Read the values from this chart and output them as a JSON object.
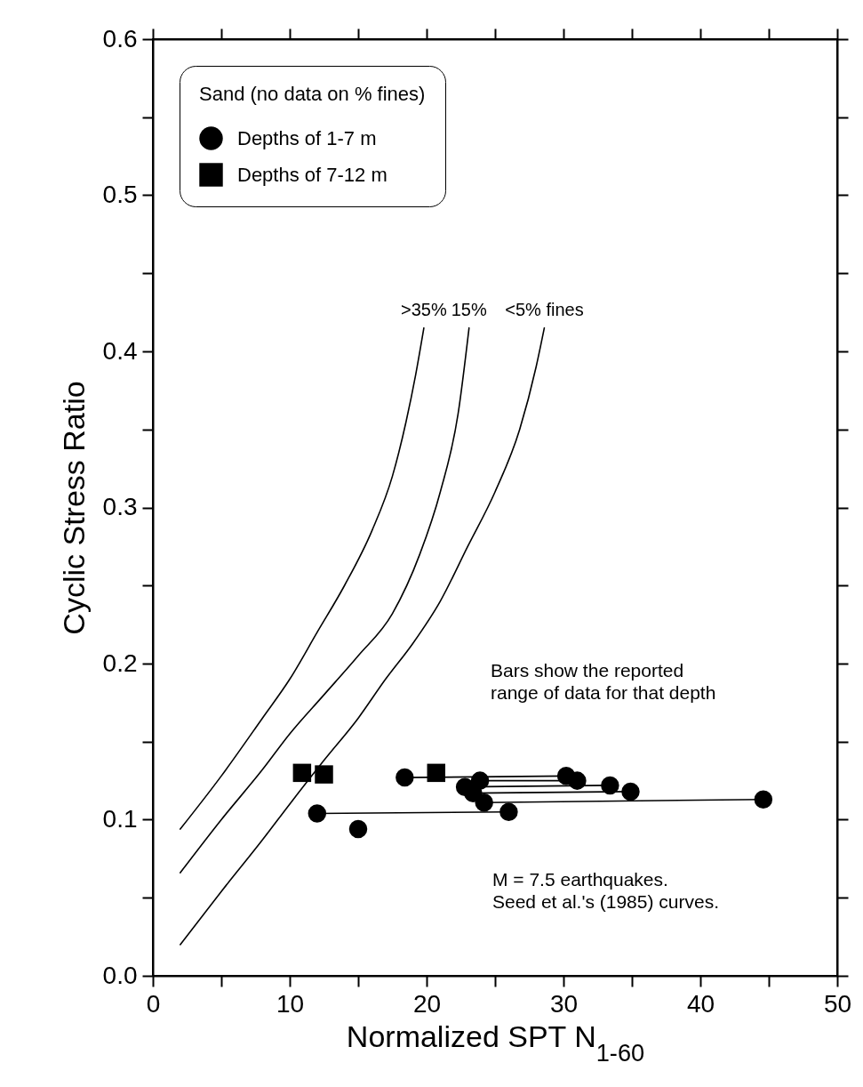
{
  "chart_data": {
    "type": "scatter",
    "xlabel": "Normalized SPT N$_{1-60}$",
    "ylabel": "Cyclic Stress Ratio",
    "legend_title": "Sand (no data on % fines)",
    "legend": "top left",
    "grid": false,
    "xlim": [
      0,
      50
    ],
    "ylim": [
      0,
      0.6
    ],
    "xticks": [
      0,
      {
        "value": 5,
        "label": null
      },
      10,
      {
        "value": 15,
        "label": null
      },
      20,
      {
        "value": 25,
        "label": null
      },
      30,
      {
        "value": 35,
        "label": null
      },
      40,
      {
        "value": 45,
        "label": null
      },
      50
    ],
    "yticks": [
      {
        "value": 0,
        "label": "0.0"
      },
      {
        "value": 0.05,
        "label": null
      },
      0.1,
      {
        "value": 0.15,
        "label": null
      },
      0.2,
      {
        "value": 0.25,
        "label": null
      },
      0.3,
      {
        "value": 0.35,
        "label": null
      },
      0.4,
      {
        "value": 0.45,
        "label": null
      },
      0.5,
      {
        "value": 0.55,
        "label": null
      },
      0.6
    ],
    "series": [
      {
        "type": "line",
        "marker": "none",
        "color": "#000000",
        "x": [
          18.4,
          30.2
        ],
        "values": [
          0.127,
          0.128
        ]
      },
      {
        "type": "line",
        "marker": "none",
        "color": "#000000",
        "x": [
          23.9,
          31.0
        ],
        "values": [
          0.125,
          0.125
        ]
      },
      {
        "type": "line",
        "marker": "none",
        "color": "#000000",
        "x": [
          22.8,
          33.4
        ],
        "values": [
          0.121,
          0.122
        ]
      },
      {
        "type": "line",
        "marker": "none",
        "color": "#000000",
        "x": [
          23.4,
          34.9
        ],
        "values": [
          0.117,
          0.118
        ]
      },
      {
        "type": "line",
        "marker": "none",
        "color": "#000000",
        "x": [
          24.2,
          44.6
        ],
        "values": [
          0.111,
          0.113
        ]
      },
      {
        "type": "line",
        "marker": "none",
        "color": "#000000",
        "x": [
          12.0,
          26.0
        ],
        "values": [
          0.104,
          0.105
        ]
      },
      {
        "name": ">35%",
        "type": "line",
        "marker": "none",
        "color": "#000000",
        "x": [
          2,
          5,
          8,
          10,
          12,
          14,
          16,
          17.5,
          18.5,
          19.2,
          19.8
        ],
        "values": [
          0.094,
          0.128,
          0.165,
          0.19,
          0.22,
          0.25,
          0.285,
          0.32,
          0.355,
          0.385,
          0.415
        ]
      },
      {
        "name": "15%",
        "type": "line",
        "marker": "none",
        "color": "#000000",
        "x": [
          2,
          5,
          8,
          10,
          12.5,
          15,
          17.5,
          19.5,
          21,
          22.3,
          23.1
        ],
        "values": [
          0.066,
          0.1,
          0.132,
          0.155,
          0.18,
          0.205,
          0.232,
          0.27,
          0.31,
          0.36,
          0.415
        ]
      },
      {
        "name": "<5% fines",
        "type": "line",
        "marker": "none",
        "color": "#000000",
        "x": [
          2,
          5,
          8,
          10,
          12.5,
          15,
          17,
          19,
          21,
          23,
          25,
          26.8,
          28,
          28.6
        ],
        "values": [
          0.02,
          0.054,
          0.087,
          0.11,
          0.138,
          0.165,
          0.19,
          0.213,
          0.24,
          0.275,
          0.31,
          0.35,
          0.39,
          0.415
        ]
      },
      {
        "name": "Depths of 1-7 m",
        "marker": "circle",
        "color": "#000000",
        "x": [
          12.0,
          15.0,
          18.4,
          22.8,
          23.4,
          23.9,
          24.2,
          26.0,
          30.2,
          31.0,
          33.4,
          34.9,
          44.6
        ],
        "values": [
          0.104,
          0.094,
          0.127,
          0.121,
          0.117,
          0.125,
          0.111,
          0.105,
          0.128,
          0.125,
          0.122,
          0.118,
          0.113
        ]
      },
      {
        "name": "Depths of 7-12 m",
        "marker": "square",
        "color": "#000000",
        "x": [
          10.9,
          12.5,
          20.7
        ],
        "values": [
          0.13,
          0.129,
          0.13
        ]
      }
    ],
    "annotations": [
      "Bars show the reported\nrange of data for that depth",
      "M = 7.5 earthquakes.\nSeed et al.'s (1985) curves."
    ]
  }
}
